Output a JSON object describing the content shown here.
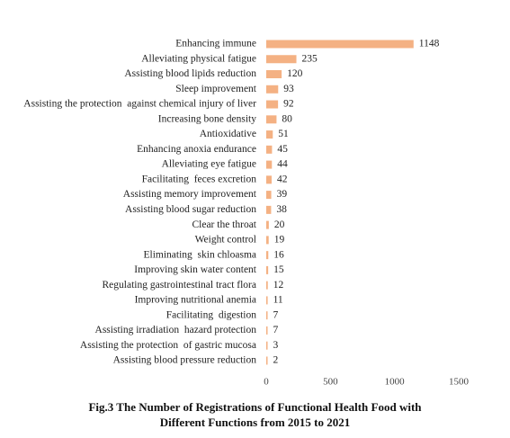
{
  "chart_data": {
    "type": "bar",
    "orientation": "horizontal",
    "categories": [
      "Enhancing immune",
      "Alleviating physical fatigue",
      "Assisting blood lipids reduction",
      "Sleep improvement",
      "Assisting the protection  against chemical injury of liver",
      "Increasing bone density",
      "Antioxidative",
      "Enhancing anoxia endurance",
      "Alleviating eye fatigue",
      "Facilitating  feces excretion",
      "Assisting memory improvement",
      "Assisting blood sugar reduction",
      "Clear the throat",
      "Weight control",
      "Eliminating  skin chloasma",
      "Improving skin water content",
      "Regulating gastrointestinal tract flora",
      "Improving nutritional anemia",
      "Facilitating  digestion",
      "Assisting irradiation  hazard protection",
      "Assisting the protection  of gastric mucosa",
      "Assisting blood pressure reduction"
    ],
    "values": [
      1148,
      235,
      120,
      93,
      92,
      80,
      51,
      45,
      44,
      42,
      39,
      38,
      20,
      19,
      16,
      15,
      12,
      11,
      7,
      7,
      3,
      2
    ],
    "xlim": [
      0,
      1500
    ],
    "xticks": [
      "0",
      "500",
      "1000",
      "1500"
    ],
    "grid": false,
    "legend": "none",
    "bar_color": "#F4B183"
  },
  "caption": {
    "line1": "Fig.3 The Number of Registrations of Functional Health Food with",
    "line2": "Different Functions from 2015 to 2021"
  }
}
